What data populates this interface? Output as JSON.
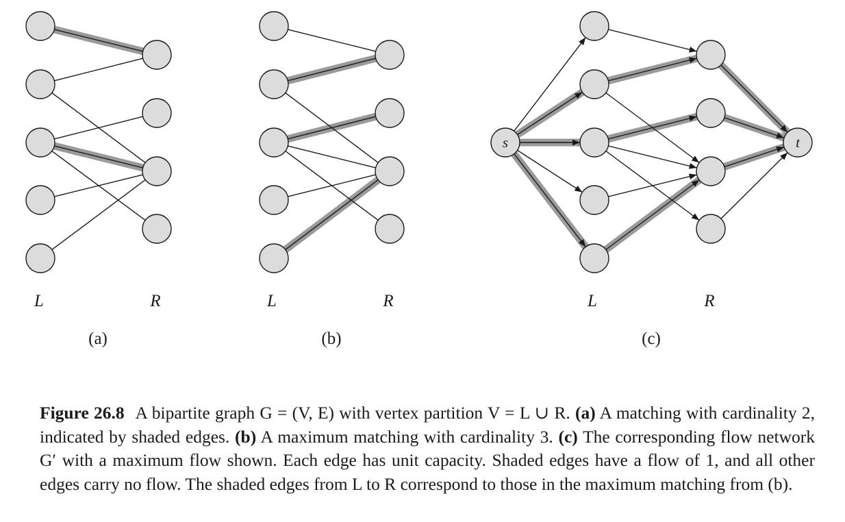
{
  "figure": {
    "panels": [
      {
        "id": "a",
        "label": "(a)",
        "left_label": "L",
        "right_label": "R",
        "left_vertices": [
          "l1",
          "l2",
          "l3",
          "l4",
          "l5"
        ],
        "right_vertices": [
          "r1",
          "r2",
          "r3",
          "r4"
        ],
        "edges": [
          {
            "from": "l1",
            "to": "r1",
            "shaded": true
          },
          {
            "from": "l2",
            "to": "r1",
            "shaded": false
          },
          {
            "from": "l2",
            "to": "r3",
            "shaded": false
          },
          {
            "from": "l3",
            "to": "r2",
            "shaded": false
          },
          {
            "from": "l3",
            "to": "r3",
            "shaded": true
          },
          {
            "from": "l3",
            "to": "r4",
            "shaded": false
          },
          {
            "from": "l4",
            "to": "r3",
            "shaded": false
          },
          {
            "from": "l5",
            "to": "r3",
            "shaded": false
          }
        ]
      },
      {
        "id": "b",
        "label": "(b)",
        "left_label": "L",
        "right_label": "R",
        "left_vertices": [
          "l1",
          "l2",
          "l3",
          "l4",
          "l5"
        ],
        "right_vertices": [
          "r1",
          "r2",
          "r3",
          "r4"
        ],
        "edges": [
          {
            "from": "l1",
            "to": "r1",
            "shaded": false
          },
          {
            "from": "l2",
            "to": "r1",
            "shaded": true
          },
          {
            "from": "l2",
            "to": "r3",
            "shaded": false
          },
          {
            "from": "l3",
            "to": "r2",
            "shaded": true
          },
          {
            "from": "l3",
            "to": "r3",
            "shaded": false
          },
          {
            "from": "l3",
            "to": "r4",
            "shaded": false
          },
          {
            "from": "l4",
            "to": "r3",
            "shaded": false
          },
          {
            "from": "l5",
            "to": "r3",
            "shaded": true
          }
        ]
      },
      {
        "id": "c",
        "label": "(c)",
        "left_label": "L",
        "right_label": "R",
        "source_label": "s",
        "sink_label": "t",
        "left_vertices": [
          "l1",
          "l2",
          "l3",
          "l4",
          "l5"
        ],
        "right_vertices": [
          "r1",
          "r2",
          "r3",
          "r4"
        ],
        "edges": [
          {
            "from": "s",
            "to": "l1",
            "shaded": false
          },
          {
            "from": "s",
            "to": "l2",
            "shaded": true
          },
          {
            "from": "s",
            "to": "l3",
            "shaded": true
          },
          {
            "from": "s",
            "to": "l4",
            "shaded": false
          },
          {
            "from": "s",
            "to": "l5",
            "shaded": true
          },
          {
            "from": "l1",
            "to": "r1",
            "shaded": false
          },
          {
            "from": "l2",
            "to": "r1",
            "shaded": true
          },
          {
            "from": "l2",
            "to": "r3",
            "shaded": false
          },
          {
            "from": "l3",
            "to": "r2",
            "shaded": true
          },
          {
            "from": "l3",
            "to": "r3",
            "shaded": false
          },
          {
            "from": "l3",
            "to": "r4",
            "shaded": false
          },
          {
            "from": "l4",
            "to": "r3",
            "shaded": false
          },
          {
            "from": "l5",
            "to": "r3",
            "shaded": true
          },
          {
            "from": "r1",
            "to": "t",
            "shaded": true
          },
          {
            "from": "r2",
            "to": "t",
            "shaded": true
          },
          {
            "from": "r3",
            "to": "t",
            "shaded": true
          },
          {
            "from": "r4",
            "to": "t",
            "shaded": false
          }
        ]
      }
    ]
  },
  "caption": {
    "figure_number": "Figure 26.8",
    "intro": "A bipartite graph G = (V, E) with vertex partition V = L ∪ R.",
    "part_a_label": "(a)",
    "part_a_text": "A matching with cardinality 2, indicated by shaded edges.",
    "part_b_label": "(b)",
    "part_b_text": "A maximum matching with cardinality 3.",
    "part_c_label": "(c)",
    "part_c_text": "The corresponding flow network G′ with a maximum flow shown. Each edge has unit capacity. Shaded edges have a flow of 1, and all other edges carry no flow. The shaded edges from L to R correspond to those in the maximum matching from (b)."
  },
  "colors": {
    "node_fill": "#dcdcdd",
    "node_stroke": "#1a1a1a",
    "edge": "#1a1a1a",
    "shade": "#9a9a9a"
  }
}
